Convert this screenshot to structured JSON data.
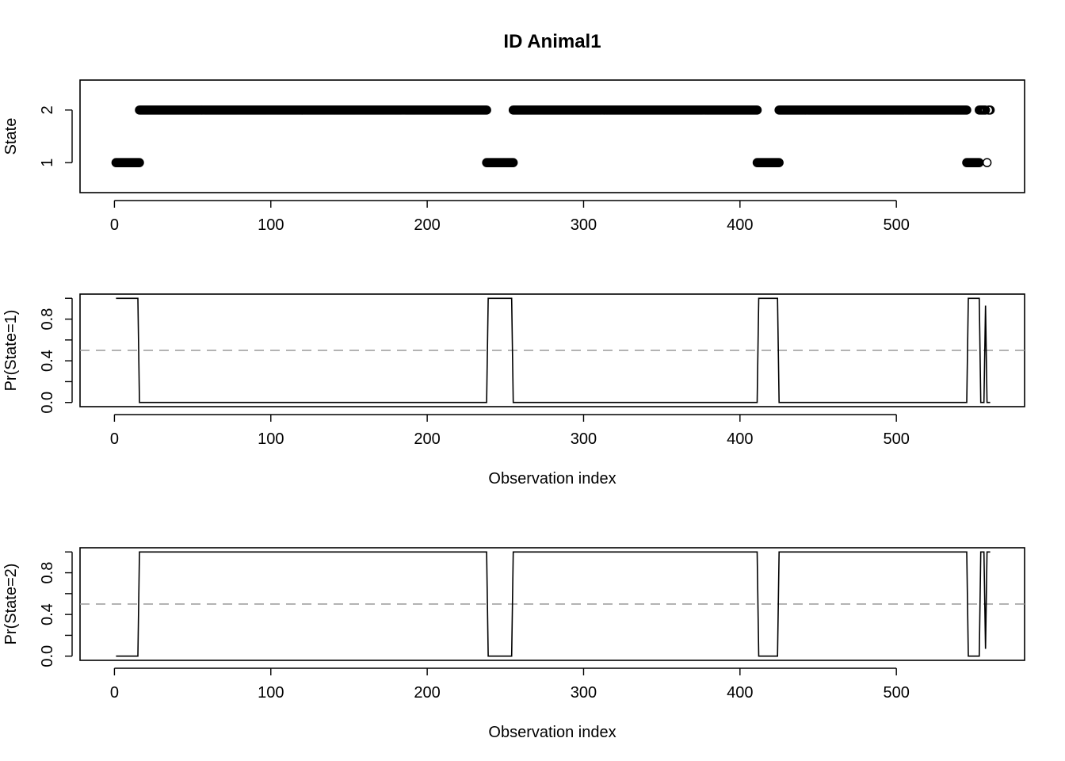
{
  "title": "ID Animal1",
  "chart_data": [
    {
      "type": "scatter",
      "title": "ID Animal1",
      "xlabel": "",
      "ylabel": "State",
      "xlim": [
        -22,
        582
      ],
      "ylim": [
        0.43,
        2.57
      ],
      "x_ticks": [
        "0",
        "100",
        "200",
        "300",
        "400",
        "500"
      ],
      "y_ticks": [
        "1",
        "2"
      ],
      "grid": false,
      "runs": [
        {
          "state": 1,
          "x_start": 1,
          "x_end": 16
        },
        {
          "state": 2,
          "x_start": 16,
          "x_end": 238
        },
        {
          "state": 1,
          "x_start": 238,
          "x_end": 255
        },
        {
          "state": 2,
          "x_start": 255,
          "x_end": 411
        },
        {
          "state": 1,
          "x_start": 411,
          "x_end": 425
        },
        {
          "state": 2,
          "x_start": 425,
          "x_end": 545
        },
        {
          "state": 1,
          "x_start": 545,
          "x_end": 553
        },
        {
          "state": 2,
          "x_start": 553,
          "x_end": 557
        },
        {
          "state": 1,
          "x_start": 558,
          "x_end": 558
        },
        {
          "state": 2,
          "x_start": 559,
          "x_end": 560
        }
      ]
    },
    {
      "type": "line",
      "xlabel": "Observation index",
      "ylabel": "Pr(State=1)",
      "xlim": [
        -22,
        582
      ],
      "ylim": [
        -0.04,
        1.04
      ],
      "x_ticks": [
        "0",
        "100",
        "200",
        "300",
        "400",
        "500"
      ],
      "y_ticks": [
        "0.0",
        "0.4",
        "0.8"
      ],
      "y_minor_ticks": [
        0.2,
        0.6,
        1.0
      ],
      "reference_line": 0.5,
      "grid": false,
      "x": [
        1,
        15,
        16,
        238,
        239,
        254,
        255,
        411,
        412,
        424,
        425,
        545,
        546,
        553,
        554,
        556,
        557,
        558,
        559,
        560
      ],
      "values": [
        1,
        1,
        0,
        0,
        1,
        1,
        0,
        0,
        1,
        1,
        0,
        0,
        1,
        1,
        0,
        0,
        0.93,
        0,
        0,
        0
      ]
    },
    {
      "type": "line",
      "xlabel": "Observation index",
      "ylabel": "Pr(State=2)",
      "xlim": [
        -22,
        582
      ],
      "ylim": [
        -0.04,
        1.04
      ],
      "x_ticks": [
        "0",
        "100",
        "200",
        "300",
        "400",
        "500"
      ],
      "y_ticks": [
        "0.0",
        "0.4",
        "0.8"
      ],
      "y_minor_ticks": [
        0.2,
        0.6,
        1.0
      ],
      "reference_line": 0.5,
      "grid": false,
      "x": [
        1,
        15,
        16,
        238,
        239,
        254,
        255,
        411,
        412,
        424,
        425,
        545,
        546,
        553,
        554,
        556,
        557,
        558,
        559,
        560
      ],
      "values": [
        0,
        0,
        1,
        1,
        0,
        0,
        1,
        1,
        0,
        0,
        1,
        1,
        0,
        0,
        1,
        1,
        0.07,
        1,
        1,
        1
      ]
    }
  ]
}
